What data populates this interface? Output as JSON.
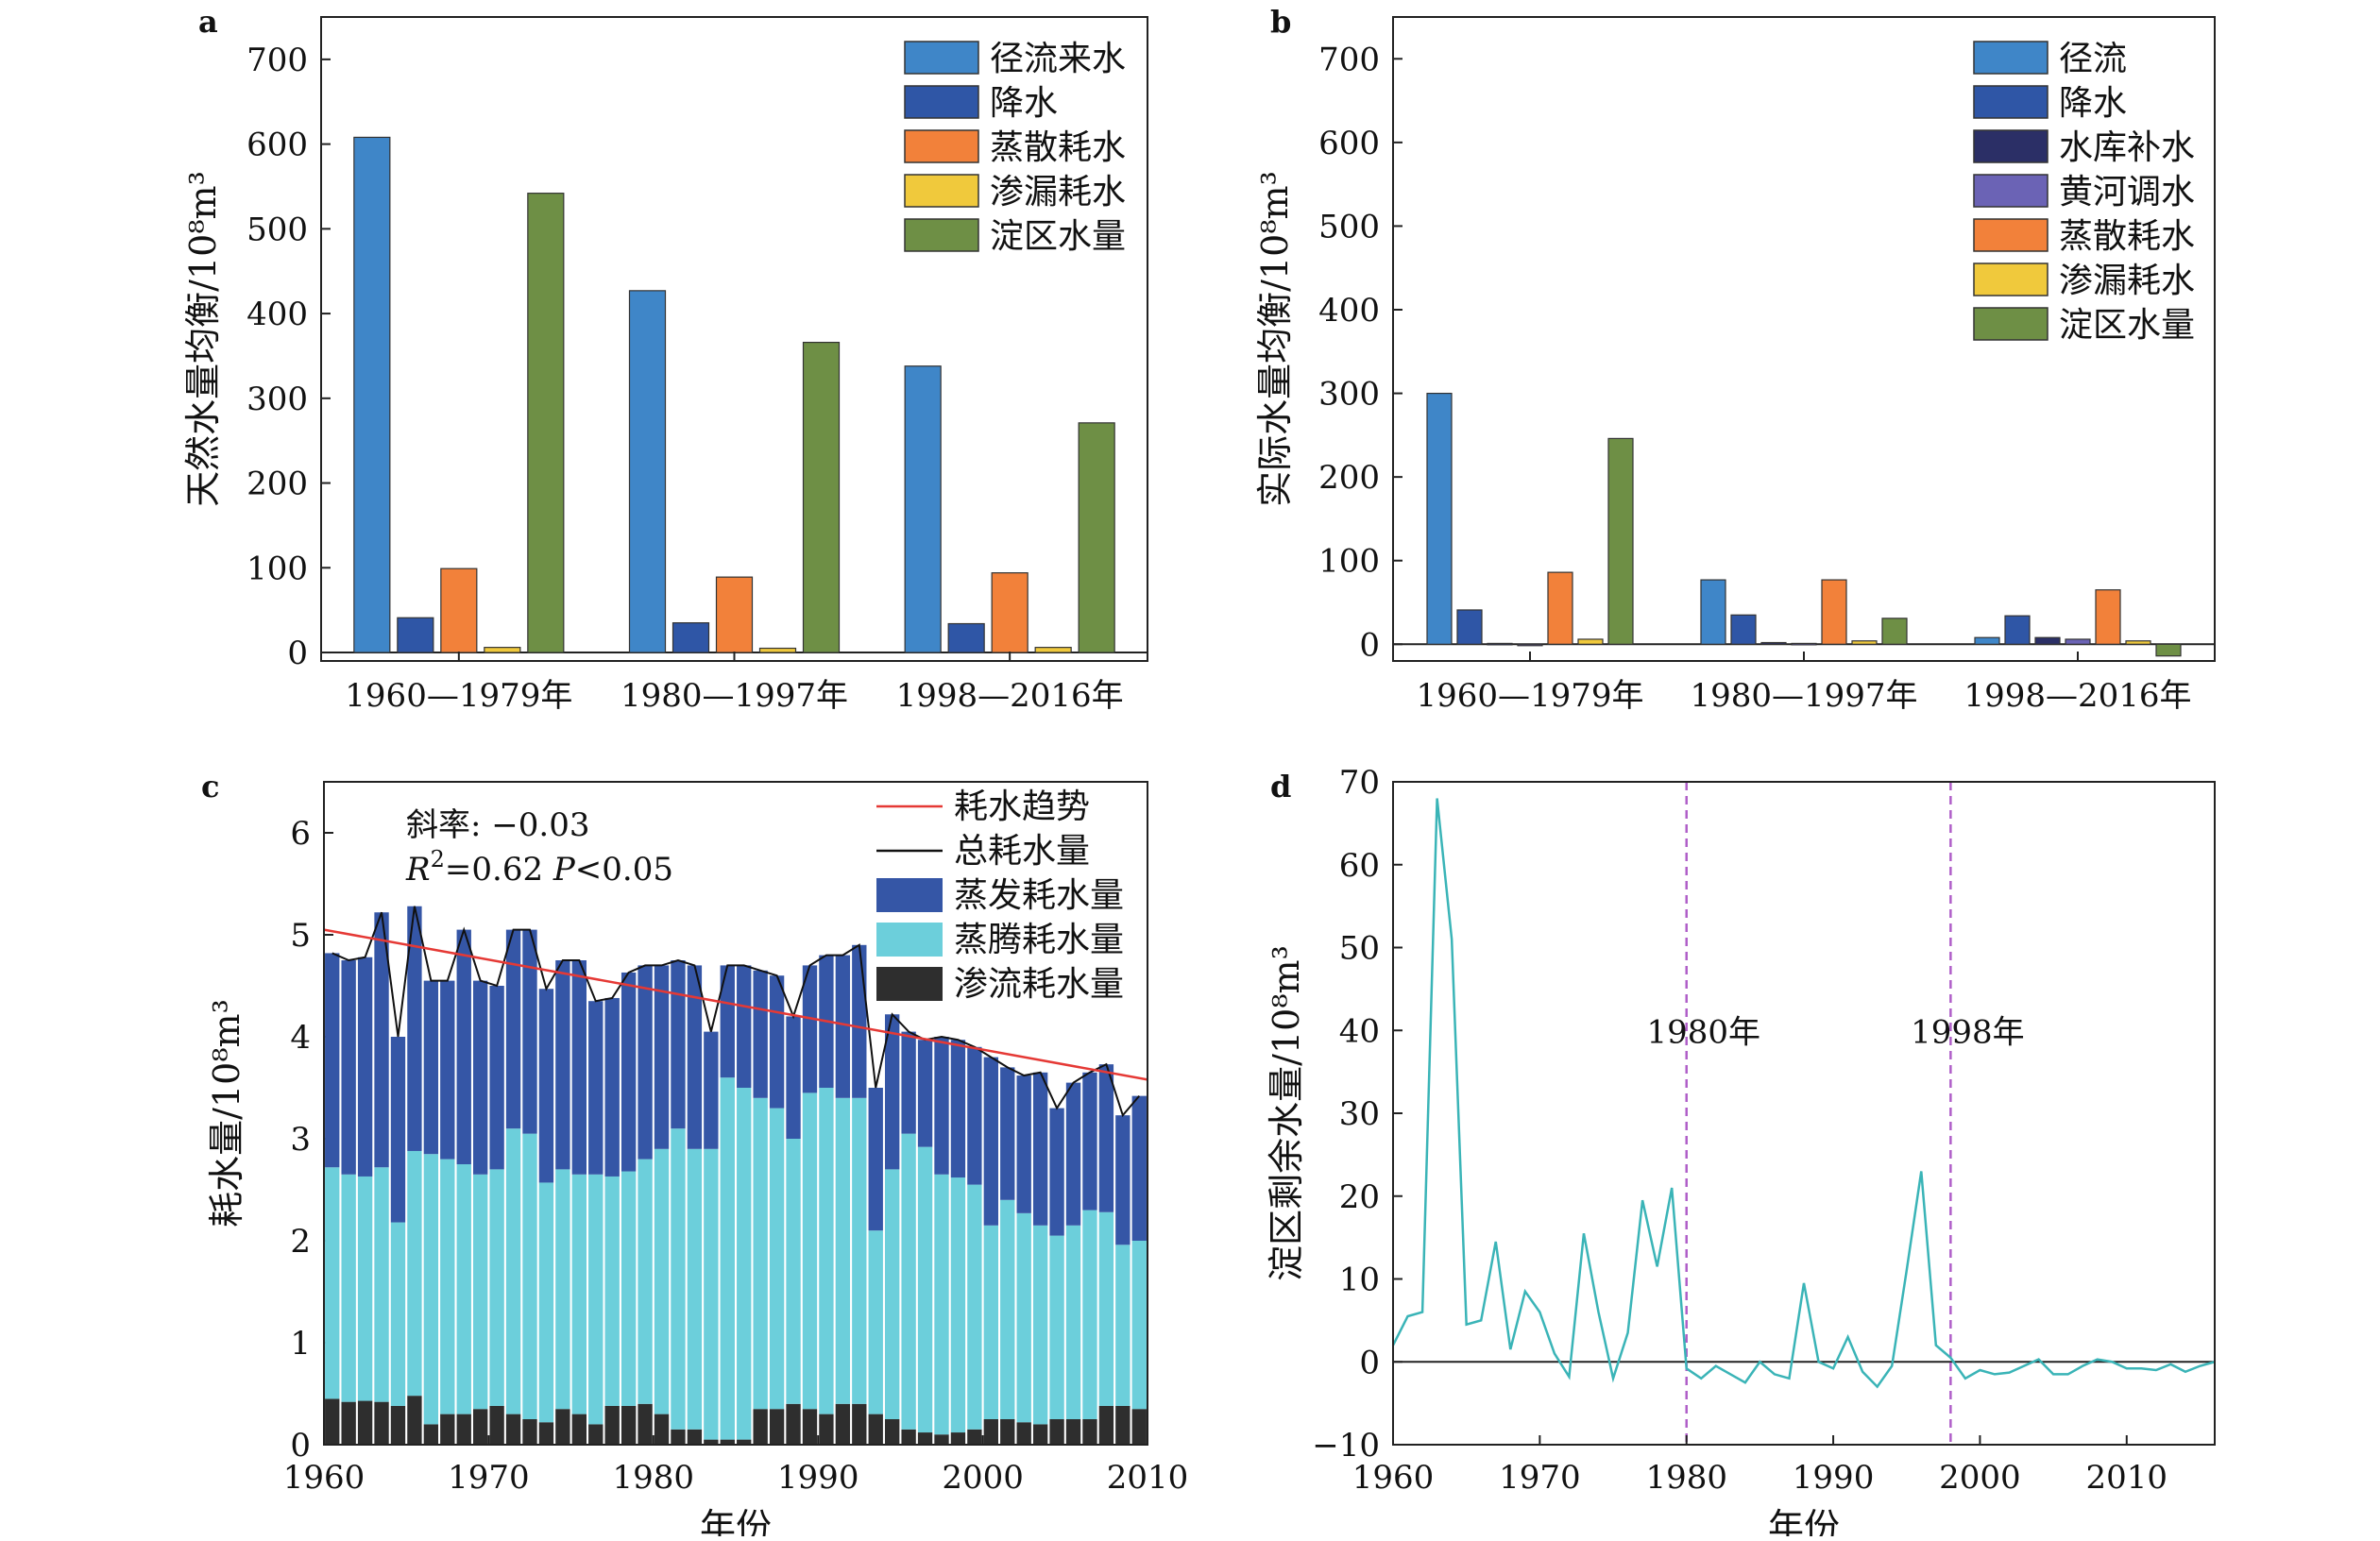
{
  "colors": {
    "runoff": "#3f86c8",
    "precip": "#2f56a6",
    "reservoir": "#2b2f66",
    "yellow_river": "#6b63b5",
    "evaporation": "#f2813a",
    "seepage": "#f0c93c",
    "storage": "#6e8f45",
    "evap_c": "#3556a6",
    "transp_c": "#6ccfdb",
    "seep_c": "#2e2e2e",
    "trend": "#e53935",
    "total_line": "#111111",
    "residual": "#3ab4b7",
    "marker": "#b05ec8"
  },
  "chart_data": [
    {
      "id": "a",
      "letter": "a",
      "type": "bar",
      "ylabel": "天然水量均衡/10⁸m³",
      "ylim": [
        -10,
        750
      ],
      "yticks": [
        0,
        100,
        200,
        300,
        400,
        500,
        600,
        700
      ],
      "categories": [
        "1960—1979年",
        "1980—1997年",
        "1998—2016年"
      ],
      "series": [
        {
          "name": "径流来水",
          "color_key": "runoff",
          "values": [
            608,
            427,
            338
          ]
        },
        {
          "name": "降水",
          "color_key": "precip",
          "values": [
            41,
            35,
            34
          ]
        },
        {
          "name": "蒸散耗水",
          "color_key": "evaporation",
          "values": [
            99,
            89,
            94
          ]
        },
        {
          "name": "渗漏耗水",
          "color_key": "seepage",
          "values": [
            6,
            5,
            6
          ]
        },
        {
          "name": "淀区水量",
          "color_key": "storage",
          "values": [
            542,
            366,
            271
          ]
        }
      ],
      "legend_position": "top-right"
    },
    {
      "id": "b",
      "letter": "b",
      "type": "bar",
      "ylabel": "实际水量均衡/10⁸m³",
      "ylim": [
        -20,
        750
      ],
      "yticks": [
        0,
        100,
        200,
        300,
        400,
        500,
        600,
        700
      ],
      "categories": [
        "1960—1979年",
        "1980—1997年",
        "1998—2016年"
      ],
      "series": [
        {
          "name": "径流",
          "color_key": "runoff",
          "values": [
            300,
            77,
            8
          ]
        },
        {
          "name": "降水",
          "color_key": "precip",
          "values": [
            41,
            35,
            34
          ]
        },
        {
          "name": "水库补水",
          "color_key": "reservoir",
          "values": [
            1,
            2,
            8
          ]
        },
        {
          "name": "黄河调水",
          "color_key": "yellow_river",
          "values": [
            0,
            1,
            6
          ]
        },
        {
          "name": "蒸散耗水",
          "color_key": "evaporation",
          "values": [
            86,
            77,
            65
          ]
        },
        {
          "name": "渗漏耗水",
          "color_key": "seepage",
          "values": [
            6,
            4,
            4
          ]
        },
        {
          "name": "淀区水量",
          "color_key": "storage",
          "values": [
            246,
            31,
            -14
          ]
        }
      ],
      "legend_position": "top-right"
    },
    {
      "id": "c",
      "letter": "c",
      "type": "bar",
      "stacked": true,
      "xlabel": "年份",
      "ylabel": "耗水量/10⁸m³",
      "xlim": [
        1960,
        2010
      ],
      "ylim": [
        0,
        6.5
      ],
      "xticks": [
        1960,
        1970,
        1980,
        1990,
        2000,
        2010
      ],
      "yticks": [
        0,
        1,
        2,
        3,
        4,
        5,
        6
      ],
      "years": [
        1960,
        1961,
        1962,
        1963,
        1964,
        1965,
        1966,
        1967,
        1968,
        1969,
        1970,
        1971,
        1972,
        1973,
        1974,
        1975,
        1976,
        1977,
        1978,
        1979,
        1980,
        1981,
        1982,
        1983,
        1984,
        1985,
        1986,
        1987,
        1988,
        1989,
        1990,
        1991,
        1992,
        1993,
        1994,
        1995,
        1996,
        1997,
        1998,
        1999,
        2000,
        2001,
        2002,
        2003,
        2004,
        2005,
        2006,
        2007,
        2008,
        2009
      ],
      "series": [
        {
          "name": "渗流耗水量",
          "color_key": "seep_c",
          "values": [
            0.45,
            0.42,
            0.43,
            0.42,
            0.38,
            0.48,
            0.2,
            0.3,
            0.3,
            0.35,
            0.38,
            0.3,
            0.25,
            0.22,
            0.35,
            0.3,
            0.2,
            0.38,
            0.38,
            0.4,
            0.3,
            0.15,
            0.15,
            0.05,
            0.05,
            0.05,
            0.35,
            0.35,
            0.4,
            0.35,
            0.3,
            0.4,
            0.4,
            0.3,
            0.25,
            0.15,
            0.12,
            0.1,
            0.12,
            0.15,
            0.25,
            0.25,
            0.22,
            0.2,
            0.25,
            0.25,
            0.25,
            0.38,
            0.38,
            0.35
          ]
        },
        {
          "name": "蒸腾耗水量",
          "color_key": "transp_c",
          "values": [
            2.27,
            2.23,
            2.2,
            2.3,
            1.8,
            2.4,
            2.65,
            2.5,
            2.45,
            2.3,
            2.32,
            2.8,
            2.8,
            2.35,
            2.35,
            2.35,
            2.45,
            2.25,
            2.3,
            2.4,
            2.6,
            2.95,
            2.75,
            2.85,
            3.55,
            3.45,
            3.05,
            2.95,
            2.6,
            3.1,
            3.2,
            3.0,
            3.0,
            1.8,
            2.45,
            2.9,
            2.8,
            2.55,
            2.5,
            2.4,
            1.9,
            2.15,
            2.05,
            1.95,
            1.8,
            1.9,
            2.05,
            1.9,
            1.58,
            1.65
          ]
        },
        {
          "name": "蒸发耗水量",
          "color_key": "evap_c",
          "values": [
            2.1,
            2.1,
            2.15,
            2.5,
            1.82,
            2.4,
            1.7,
            1.75,
            2.3,
            1.9,
            1.8,
            1.95,
            2.0,
            1.9,
            2.05,
            2.1,
            1.7,
            1.75,
            1.95,
            1.9,
            1.8,
            1.65,
            1.8,
            1.15,
            1.1,
            1.2,
            1.25,
            1.3,
            1.2,
            1.25,
            1.3,
            1.4,
            1.5,
            1.4,
            1.52,
            1.0,
            1.05,
            1.35,
            1.35,
            1.35,
            1.65,
            1.3,
            1.35,
            1.5,
            1.25,
            1.4,
            1.35,
            1.45,
            1.27,
            1.42
          ]
        }
      ],
      "line_series": [
        {
          "name": "总耗水量",
          "color_key": "total_line"
        },
        {
          "name": "耗水趋势",
          "color_key": "trend",
          "start": [
            1960,
            5.05
          ],
          "end": [
            2010,
            3.58
          ]
        }
      ],
      "legend": [
        "耗水趋势",
        "总耗水量",
        "蒸发耗水量",
        "蒸腾耗水量",
        "渗流耗水量"
      ],
      "legend_position": "top-right",
      "annotations": {
        "slope": "斜率: −0.03",
        "r2_prefix": "R",
        "r2_sup": "2",
        "r2_rest": "=0.62  ",
        "p_italic": "P",
        "p_rest": "<0.05"
      }
    },
    {
      "id": "d",
      "letter": "d",
      "type": "line",
      "xlabel": "年份",
      "ylabel": "淀区剩余水量/10⁸m³",
      "xlim": [
        1960,
        2016
      ],
      "ylim": [
        -10,
        70
      ],
      "xticks": [
        1960,
        1970,
        1980,
        1990,
        2000,
        2010
      ],
      "yticks": [
        -10,
        0,
        10,
        20,
        30,
        40,
        50,
        60,
        70
      ],
      "x": [
        1960,
        1961,
        1962,
        1963,
        1964,
        1965,
        1966,
        1967,
        1968,
        1969,
        1970,
        1971,
        1972,
        1973,
        1974,
        1975,
        1976,
        1977,
        1978,
        1979,
        1980,
        1981,
        1982,
        1983,
        1984,
        1985,
        1986,
        1987,
        1988,
        1989,
        1990,
        1991,
        1992,
        1993,
        1994,
        1995,
        1996,
        1997,
        1998,
        1999,
        2000,
        2001,
        2002,
        2003,
        2004,
        2005,
        2006,
        2007,
        2008,
        2009,
        2010,
        2011,
        2012,
        2013,
        2014,
        2015,
        2016
      ],
      "y": [
        2,
        5.5,
        6,
        68,
        51,
        4.5,
        5,
        14.5,
        1.5,
        8.5,
        6,
        1,
        -1.8,
        15.5,
        6,
        -2,
        3.5,
        19.5,
        11.5,
        21,
        -0.8,
        -2,
        -0.5,
        -1.5,
        -2.5,
        0,
        -1.5,
        -2,
        9.5,
        0,
        -0.8,
        3,
        -1.2,
        -3,
        -0.5,
        11,
        23,
        2,
        0.5,
        -2,
        -1,
        -1.5,
        -1.3,
        -0.5,
        0.3,
        -1.5,
        -1.5,
        -0.5,
        0.3,
        0,
        -0.8,
        -0.8,
        -1,
        -0.3,
        -1.2,
        -0.5,
        0
      ],
      "reference_lines": [
        {
          "x": 1980,
          "label": "1980年"
        },
        {
          "x": 1998,
          "label": "1998年"
        }
      ]
    }
  ]
}
